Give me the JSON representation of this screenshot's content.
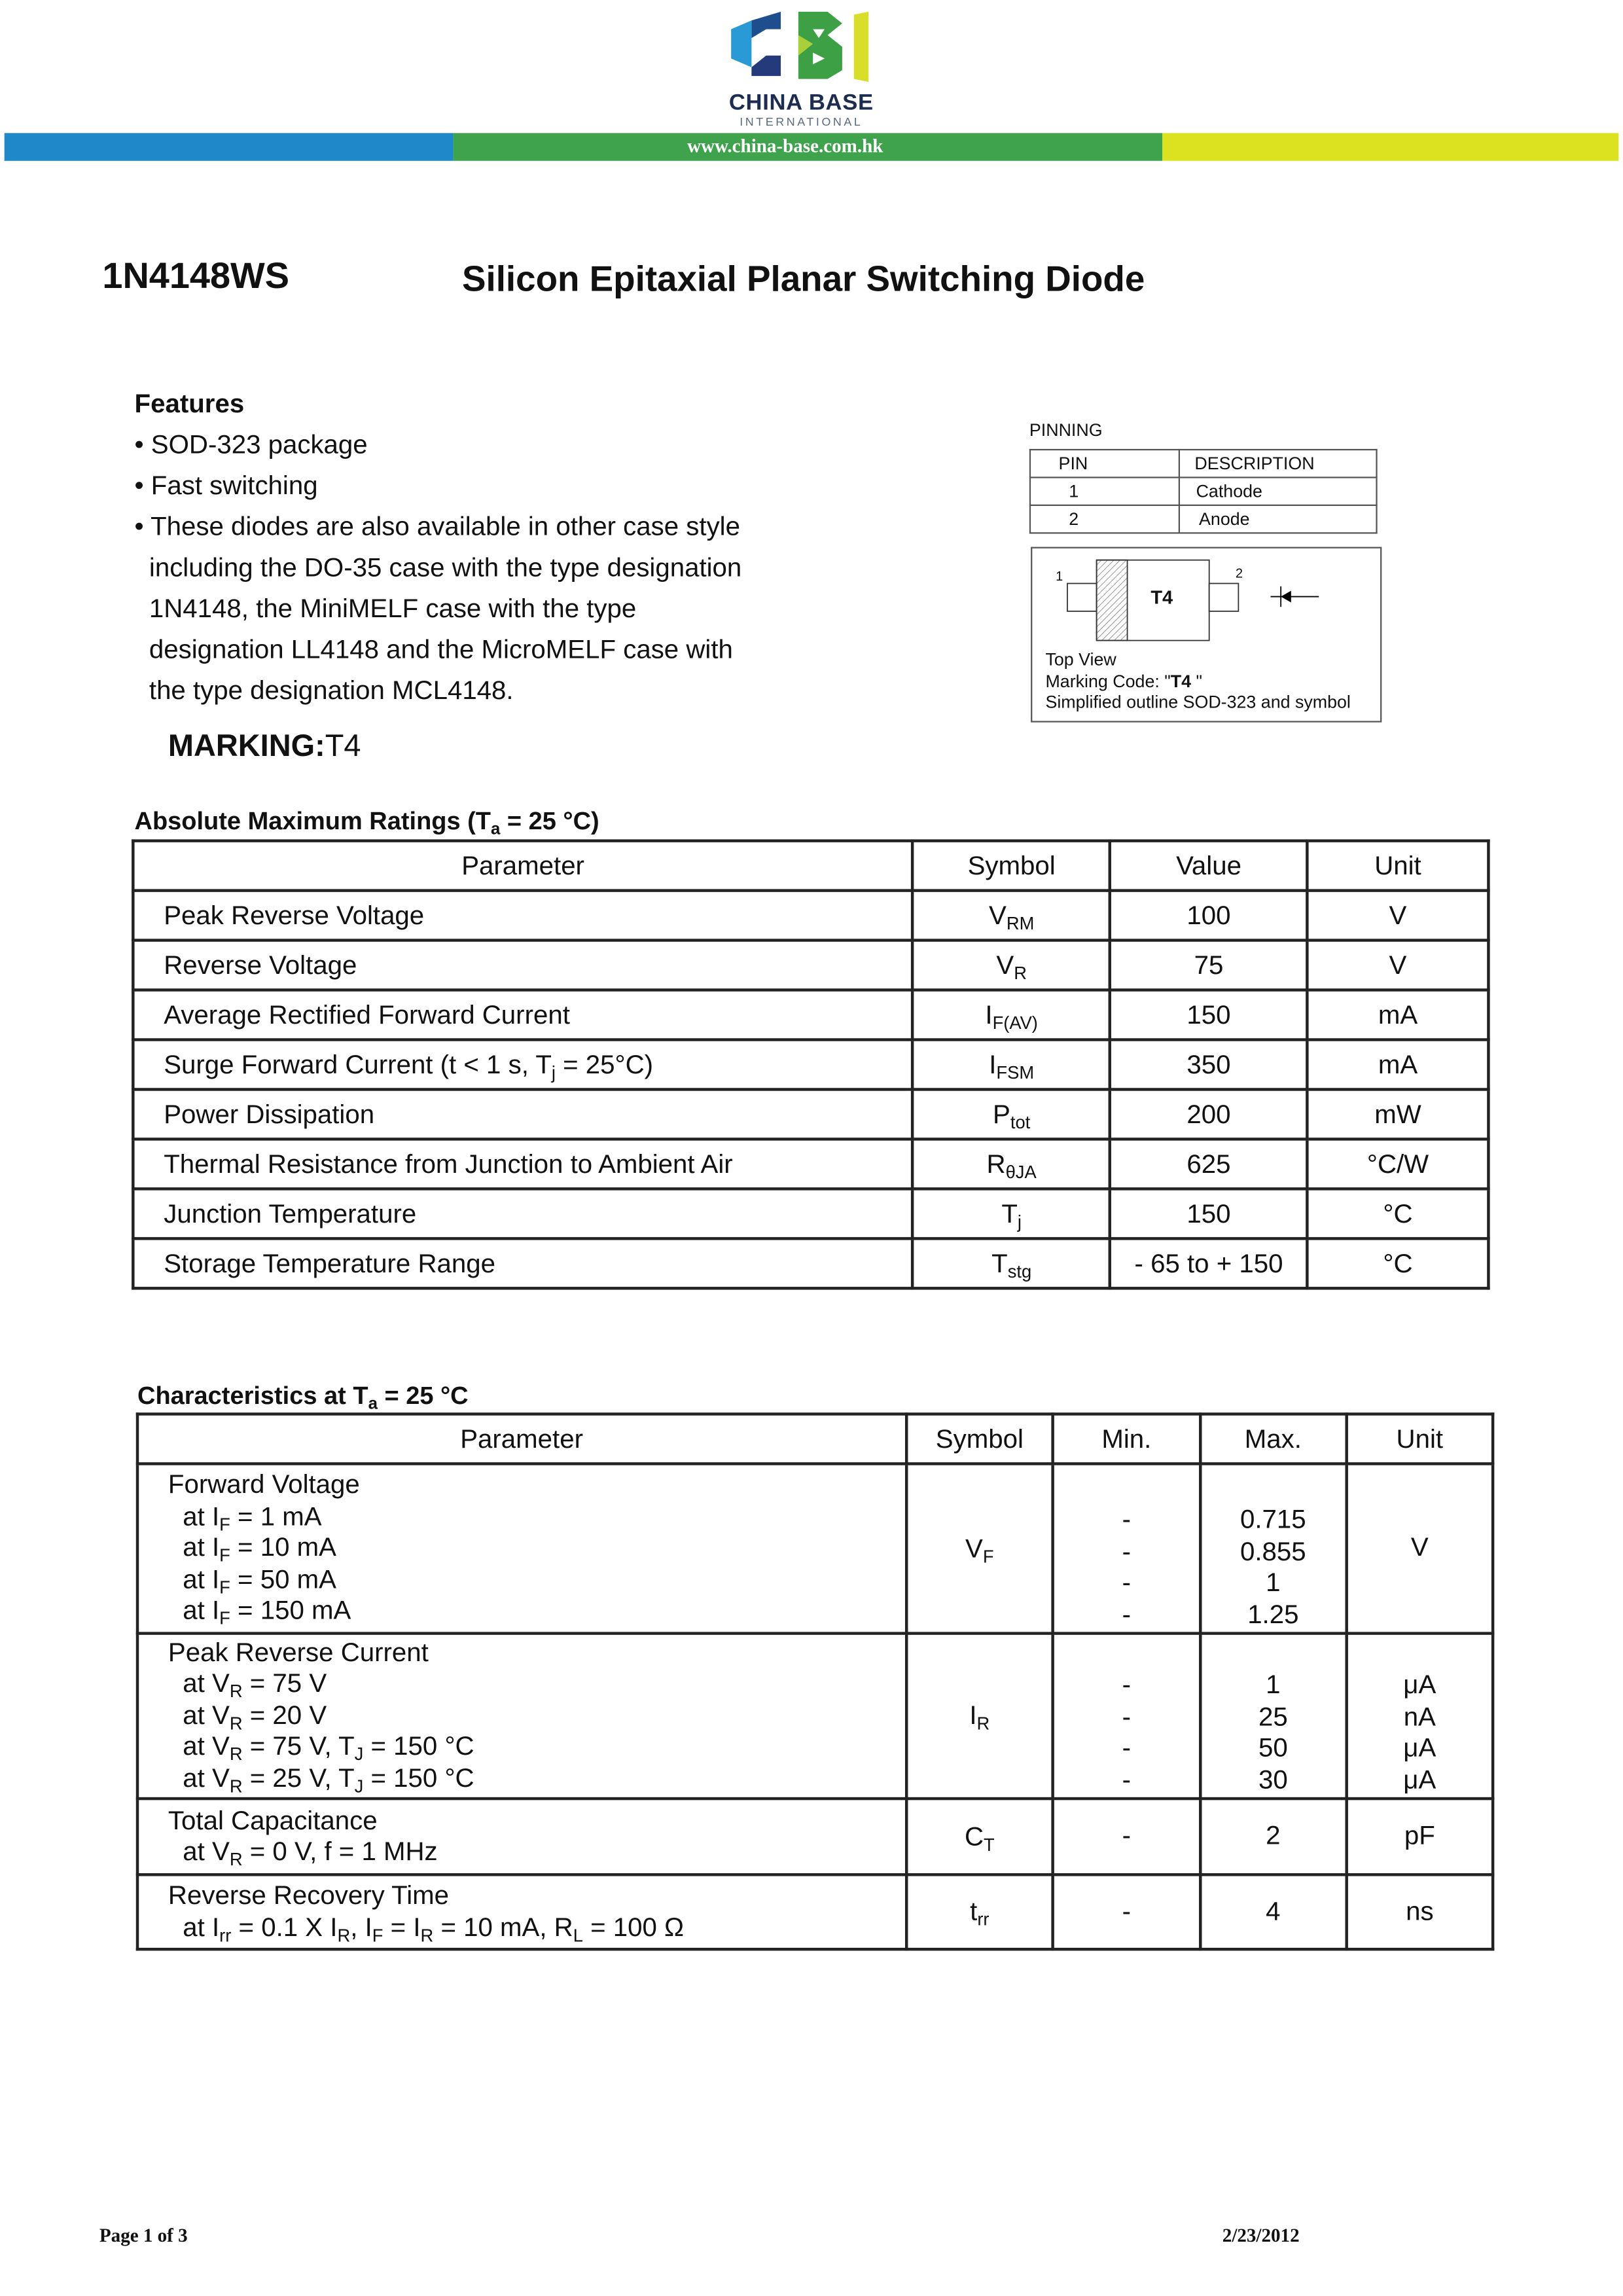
{
  "header": {
    "logo_text": "CBI",
    "brand_name": "CHINA BASE",
    "brand_sub": "INTERNATIONAL",
    "url": "www.china-base.com.hk",
    "colors": {
      "blue": "#1e88c8",
      "green": "#3fa34d",
      "yellow": "#dce21f",
      "navy": "#1c2d4f"
    }
  },
  "part_number": "1N4148WS",
  "doc_title": "Silicon Epitaxial Planar Switching Diode",
  "features": {
    "heading": "Features",
    "lines": [
      "• SOD-323 package",
      "• Fast switching",
      "• These diodes are also available in other case style",
      "  including the DO-35 case with the type designation",
      "  1N4148, the MiniMELF case with the type",
      "  designation LL4148 and the MicroMELF case with",
      "  the type designation MCL4148."
    ]
  },
  "marking": {
    "label": "MARKING:",
    "value": "T4"
  },
  "pinning": {
    "heading": "PINNING",
    "columns": [
      "PIN",
      "DESCRIPTION"
    ],
    "rows": [
      [
        "1",
        "Cathode"
      ],
      [
        "2",
        "Anode"
      ]
    ],
    "diagram": {
      "pin1": "1",
      "pin2": "2",
      "body_mark": "T4",
      "caption1": "Top View",
      "caption2_prefix": "Marking Code: \"",
      "caption2_code": "T4",
      "caption2_suffix": " \"",
      "caption3": "Simplified outline SOD-323 and symbol"
    }
  },
  "abs_max": {
    "title": [
      [
        "Absolute Maximum Ratings (T"
      ],
      [
        "a"
      ],
      [
        " = 25 °C)"
      ]
    ],
    "columns": [
      "Parameter",
      "Symbol",
      "Value",
      "Unit"
    ],
    "rows": [
      {
        "param": [
          "Peak Reverse Voltage"
        ],
        "symbol": [
          "V",
          "RM"
        ],
        "value": "100",
        "unit": "V"
      },
      {
        "param": [
          "Reverse Voltage"
        ],
        "symbol": [
          "V",
          "R"
        ],
        "value": "75",
        "unit": "V"
      },
      {
        "param": [
          "Average Rectified Forward Current"
        ],
        "symbol": [
          "I",
          "F(AV)"
        ],
        "value": "150",
        "unit": "mA"
      },
      {
        "param": [
          "Surge Forward Current (t < 1 s, T",
          "j",
          " = 25°C)"
        ],
        "symbol": [
          "I",
          "FSM"
        ],
        "value": "350",
        "unit": "mA"
      },
      {
        "param": [
          "Power Dissipation"
        ],
        "symbol": [
          "P",
          "tot"
        ],
        "value": "200",
        "unit": "mW"
      },
      {
        "param": [
          "Thermal Resistance from Junction to Ambient Air"
        ],
        "symbol": [
          "R",
          "θJA"
        ],
        "value": "625",
        "unit": "°C/W"
      },
      {
        "param": [
          "Junction Temperature"
        ],
        "symbol": [
          "T",
          "j"
        ],
        "value": "150",
        "unit": "°C"
      },
      {
        "param": [
          "Storage Temperature Range"
        ],
        "symbol": [
          "T",
          "stg"
        ],
        "value": "- 65 to + 150",
        "unit": "°C"
      }
    ]
  },
  "characteristics": {
    "title": [
      [
        "Characteristics at T"
      ],
      [
        "a"
      ],
      [
        " = 25 °C"
      ]
    ],
    "columns": [
      "Parameter",
      "Symbol",
      "Min.",
      "Max.",
      "Unit"
    ],
    "rows": [
      {
        "param": [
          [
            "Forward Voltage"
          ],
          [
            "  at I",
            "F",
            " = 1 mA"
          ],
          [
            "  at I",
            "F",
            " = 10 mA"
          ],
          [
            "  at I",
            "F",
            " = 50 mA"
          ],
          [
            "  at I",
            "F",
            " = 150 mA"
          ]
        ],
        "symbol": [
          "V",
          "F"
        ],
        "min": [
          "-",
          "-",
          "-",
          "-"
        ],
        "max": [
          "0.715",
          "0.855",
          "1",
          "1.25"
        ],
        "unit": [
          "V"
        ]
      },
      {
        "param": [
          [
            "Peak Reverse Current"
          ],
          [
            "  at V",
            "R",
            " = 75 V"
          ],
          [
            "  at V",
            "R",
            " = 20 V"
          ],
          [
            "  at V",
            "R",
            " = 75 V, T",
            "J",
            " = 150 °C"
          ],
          [
            "  at V",
            "R",
            " = 25 V, T",
            "J",
            " = 150 °C"
          ]
        ],
        "symbol": [
          "I",
          "R"
        ],
        "min": [
          "-",
          "-",
          "-",
          "-"
        ],
        "max": [
          "1",
          "25",
          "50",
          "30"
        ],
        "unit": [
          "μA",
          "nA",
          "μA",
          "μA"
        ]
      },
      {
        "param": [
          [
            "Total Capacitance"
          ],
          [
            "  at V",
            "R",
            " = 0 V, f = 1 MHz"
          ]
        ],
        "symbol": [
          "C",
          "T"
        ],
        "min": [
          "-"
        ],
        "max": [
          "2"
        ],
        "unit": [
          "pF"
        ]
      },
      {
        "param": [
          [
            "Reverse Recovery Time"
          ],
          [
            "  at I",
            "rr",
            " = 0.1 X I",
            "R",
            ", I",
            "F",
            " = I",
            "R",
            " = 10 mA, R",
            "L",
            " = 100 Ω"
          ]
        ],
        "symbol": [
          "t",
          "rr"
        ],
        "min": [
          "-"
        ],
        "max": [
          "4"
        ],
        "unit": [
          "ns"
        ]
      }
    ]
  },
  "footer": {
    "page": "Page 1 of 3",
    "date": "2/23/2012"
  }
}
